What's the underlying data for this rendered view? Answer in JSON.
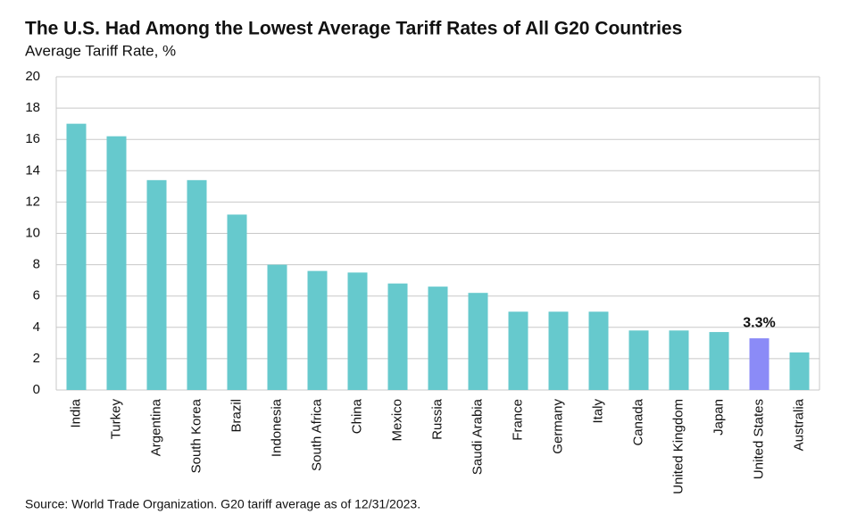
{
  "chart_data": {
    "type": "bar",
    "title": "The U.S. Had Among the Lowest Average Tariff Rates of All G20 Countries",
    "subtitle": "Average Tariff Rate, %",
    "source": "Source: World Trade Organization. G20 tariff average as of 12/31/2023.",
    "categories": [
      "India",
      "Turkey",
      "Argentina",
      "South Korea",
      "Brazil",
      "Indonesia",
      "South Africa",
      "China",
      "Mexico",
      "Russia",
      "Saudi Arabia",
      "France",
      "Germany",
      "Italy",
      "Canada",
      "United Kingdom",
      "Japan",
      "United States",
      "Australia"
    ],
    "values": [
      17.0,
      16.2,
      13.4,
      13.4,
      11.2,
      8.0,
      7.6,
      7.5,
      6.8,
      6.6,
      6.2,
      5.0,
      5.0,
      5.0,
      3.8,
      3.8,
      3.7,
      3.3,
      2.4
    ],
    "value_labels": [
      null,
      null,
      null,
      null,
      null,
      null,
      null,
      null,
      null,
      null,
      null,
      null,
      null,
      null,
      null,
      null,
      null,
      "3.3%",
      null
    ],
    "colors": [
      "#66c9cd",
      "#66c9cd",
      "#66c9cd",
      "#66c9cd",
      "#66c9cd",
      "#66c9cd",
      "#66c9cd",
      "#66c9cd",
      "#66c9cd",
      "#66c9cd",
      "#66c9cd",
      "#66c9cd",
      "#66c9cd",
      "#66c9cd",
      "#66c9cd",
      "#66c9cd",
      "#66c9cd",
      "#8b8bf7",
      "#66c9cd"
    ],
    "ylim": [
      0,
      20
    ],
    "yticks": [
      0,
      2,
      4,
      6,
      8,
      10,
      12,
      14,
      16,
      18,
      20
    ],
    "grid": true
  }
}
